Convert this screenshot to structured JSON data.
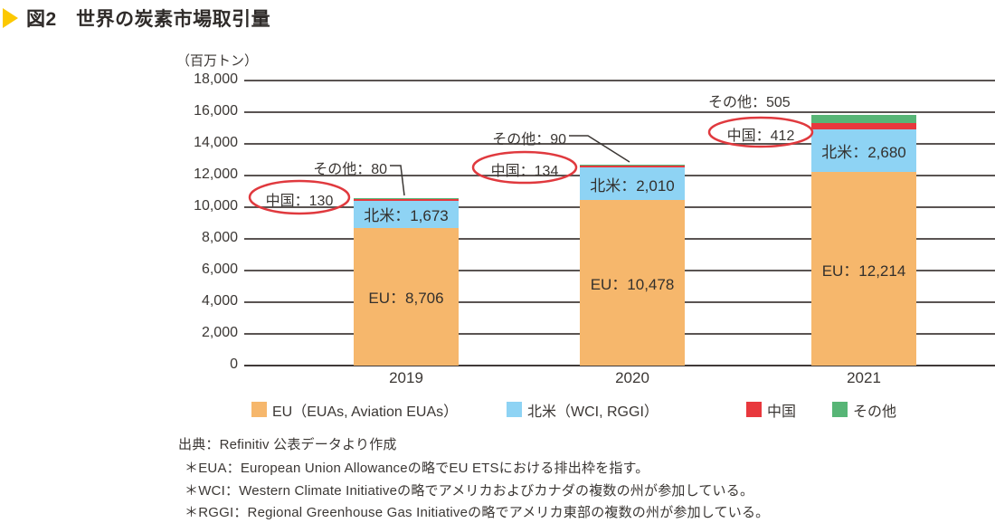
{
  "title": {
    "text": "図2　世界の炭素市場取引量"
  },
  "chart_data": {
    "type": "bar",
    "subtype": "stacked",
    "title": "世界の炭素市場取引量",
    "unit_label": "（百万トン）",
    "categories": [
      "2019",
      "2020",
      "2021"
    ],
    "series": [
      {
        "name": "EU",
        "legend": "EU（EUAs, Aviation EUAs）",
        "color": "#F6B76C",
        "values": [
          8706,
          10478,
          12214
        ],
        "in_bar_label": true
      },
      {
        "name": "北米",
        "legend": "北米（WCI, RGGI）",
        "color": "#8ED3F4",
        "values": [
          1673,
          2010,
          2680
        ],
        "in_bar_label": true
      },
      {
        "name": "中国",
        "legend": "中国",
        "color": "#E8383D",
        "values": [
          130,
          134,
          412
        ],
        "in_bar_label": false
      },
      {
        "name": "その他",
        "legend": "その他",
        "color": "#57B576",
        "values": [
          80,
          90,
          505
        ],
        "in_bar_label": false
      }
    ],
    "ylim": [
      0,
      18000
    ],
    "ytick_step": 2000,
    "grid": true,
    "legend_position": "bottom",
    "callouts": {
      "china_circled": true,
      "label_separator": "："
    }
  },
  "footer": {
    "source": "出典：Refinitiv 公表データより作成",
    "notes": [
      "＊EUA：European Union Allowanceの略でEU ETSにおける排出枠を指す。",
      "＊WCI：Western Climate Initiativeの略でアメリカおよびカナダの複数の州が参加している。",
      "＊RGGI：Regional Greenhouse Gas Initiativeの略でアメリカ東部の複数の州が参加している。"
    ]
  },
  "colors": {
    "title_arrow": "#FCC800",
    "callout_ellipse": "#E0393E",
    "gridline": "#5A5452",
    "text": "#3B3734"
  }
}
